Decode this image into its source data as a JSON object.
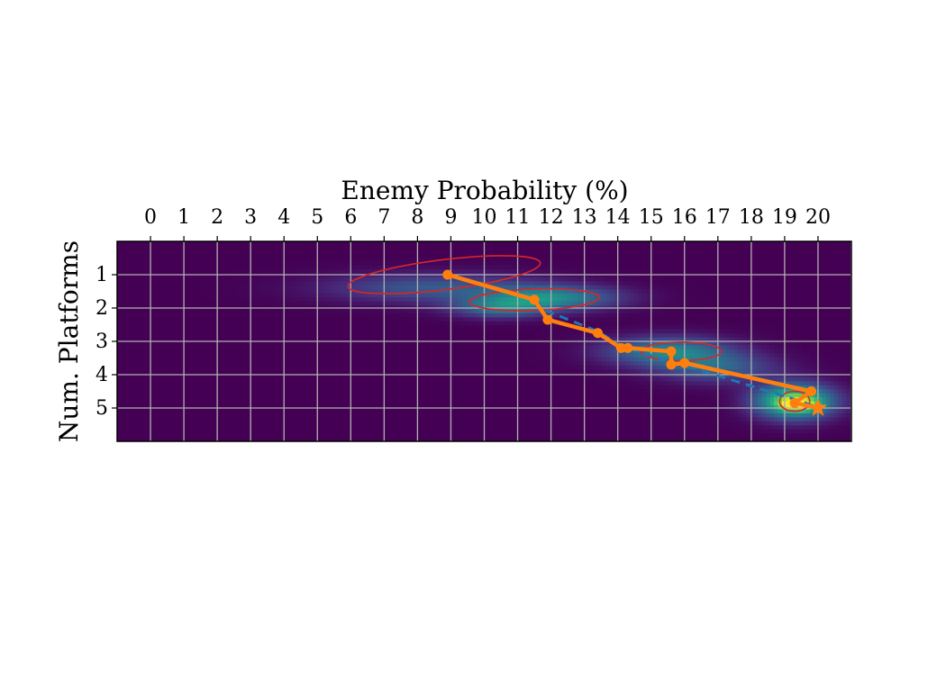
{
  "chart_data": {
    "type": "heatmap",
    "xlabel": "Enemy Probability (%)",
    "ylabel": "Num. Platforms",
    "x_ticks": [
      "0",
      "1",
      "2",
      "3",
      "4",
      "5",
      "6",
      "7",
      "8",
      "9",
      "10",
      "11",
      "12",
      "13",
      "14",
      "15",
      "16",
      "17",
      "18",
      "19",
      "20"
    ],
    "y_ticks": [
      "1",
      "2",
      "3",
      "4",
      "5"
    ],
    "xlim": [
      -1,
      21
    ],
    "ylim": [
      0,
      6
    ],
    "x_axis_position": "top",
    "grid": true,
    "colormap": "viridis",
    "colors": {
      "grid": "#b0b0b0",
      "path": "#ff7f0e",
      "dashed_path": "#1f77b4",
      "ellipse": "#d62728"
    },
    "density_blobs": [
      {
        "x": 8.5,
        "y": 1.4,
        "sx": 2.2,
        "sy": 0.3,
        "w": 0.28
      },
      {
        "x": 12.0,
        "y": 1.7,
        "sx": 1.4,
        "sy": 0.25,
        "w": 0.45
      },
      {
        "x": 10.5,
        "y": 2.0,
        "sx": 1.0,
        "sy": 0.2,
        "w": 0.35
      },
      {
        "x": 15.5,
        "y": 3.3,
        "sx": 1.3,
        "sy": 0.3,
        "w": 0.45
      },
      {
        "x": 17.0,
        "y": 3.8,
        "sx": 1.2,
        "sy": 0.3,
        "w": 0.3
      },
      {
        "x": 19.3,
        "y": 4.8,
        "sx": 0.8,
        "sy": 0.35,
        "w": 0.85
      },
      {
        "x": 19.4,
        "y": 4.9,
        "sx": 0.35,
        "sy": 0.12,
        "w": 0.5
      }
    ],
    "ellipses": [
      {
        "cx": 8.8,
        "cy": 1.0,
        "rx": 5.8,
        "ry": 0.45,
        "angle": -7
      },
      {
        "cx": 11.5,
        "cy": 1.75,
        "rx": 3.9,
        "ry": 0.32,
        "angle": -2
      },
      {
        "cx": 15.9,
        "cy": 3.3,
        "rx": 2.4,
        "ry": 0.28,
        "angle": 0
      },
      {
        "cx": 19.3,
        "cy": 4.8,
        "rx": 0.9,
        "ry": 0.3,
        "angle": 0
      }
    ],
    "series": [
      {
        "style": "solid",
        "points": [
          [
            8.9,
            1.0
          ],
          [
            11.5,
            1.75
          ],
          [
            11.9,
            2.35
          ],
          [
            13.4,
            2.75
          ],
          [
            14.1,
            3.2
          ],
          [
            14.3,
            3.2
          ],
          [
            15.6,
            3.3
          ],
          [
            15.6,
            3.7
          ],
          [
            16.0,
            3.65
          ],
          [
            19.8,
            4.5
          ],
          [
            19.3,
            4.85
          ],
          [
            20.0,
            5.0
          ]
        ]
      },
      {
        "style": "dashed",
        "points": [
          [
            11.5,
            1.75
          ],
          [
            11.9,
            2.1
          ],
          [
            13.4,
            2.7
          ],
          [
            14.2,
            3.2
          ],
          [
            15.6,
            3.6
          ],
          [
            19.5,
            4.8
          ],
          [
            20.0,
            5.0
          ]
        ]
      }
    ],
    "end_marker": {
      "type": "star",
      "x": 20.0,
      "y": 5.0
    }
  }
}
